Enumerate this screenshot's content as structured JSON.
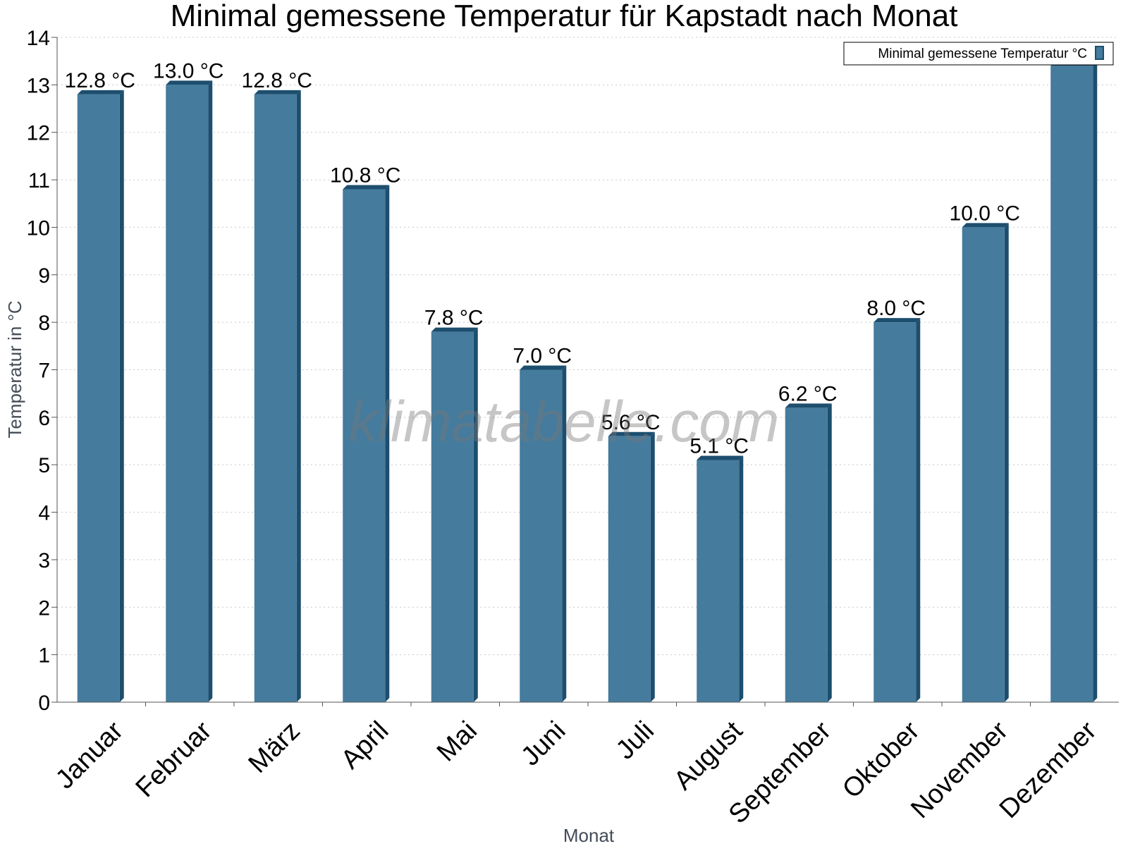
{
  "chart_data": {
    "type": "bar",
    "title": "Minimal gemessene Temperatur für Kapstadt nach Monat",
    "xlabel": "Monat",
    "ylabel": "Temperatur in °C",
    "ylim": [
      0,
      14
    ],
    "yticks": [
      0,
      1,
      2,
      3,
      4,
      5,
      6,
      7,
      8,
      9,
      10,
      11,
      12,
      13,
      14
    ],
    "grid": true,
    "legend_position": "top-right",
    "categories": [
      "Januar",
      "Februar",
      "März",
      "April",
      "Mai",
      "Juni",
      "Juli",
      "August",
      "September",
      "Oktober",
      "November",
      "Dezember"
    ],
    "series": [
      {
        "name": "Minimal gemessene Temperatur °C",
        "values": [
          12.8,
          13.0,
          12.8,
          10.8,
          7.8,
          7.0,
          5.6,
          5.1,
          6.2,
          8.0,
          10.0,
          13.4
        ],
        "labels": [
          "12.8 °C",
          "13.0 °C",
          "12.8 °C",
          "10.8 °C",
          "7.8 °C",
          "7.0 °C",
          "5.6 °C",
          "5.1 °C",
          "6.2 °C",
          "8.0 °C",
          "10.0 °C",
          ""
        ]
      }
    ],
    "colors": {
      "bar": "#457b9d",
      "bar_side": "#1d4e6e",
      "bar_top": "#1d4e6e"
    }
  },
  "watermark": "klimatabelle.com"
}
